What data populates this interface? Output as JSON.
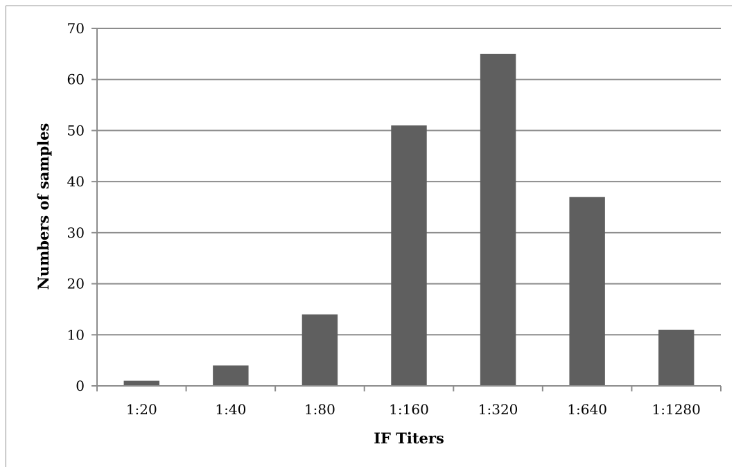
{
  "chart_data": {
    "type": "bar",
    "categories": [
      "1:20",
      "1:40",
      "1:80",
      "1:160",
      "1:320",
      "1:640",
      "1:1280"
    ],
    "values": [
      1,
      4,
      14,
      51,
      65,
      37,
      11
    ],
    "xlabel": "IF Titers",
    "ylabel": "Numbers of samples",
    "ylim": [
      0,
      70
    ],
    "yticks": [
      0,
      10,
      20,
      30,
      40,
      50,
      60,
      70
    ],
    "grid": true,
    "legend": "none",
    "colors": {
      "bar": "#5f5f5f",
      "grid": "#8c8c8c",
      "axis": "#8c8c8c"
    }
  }
}
